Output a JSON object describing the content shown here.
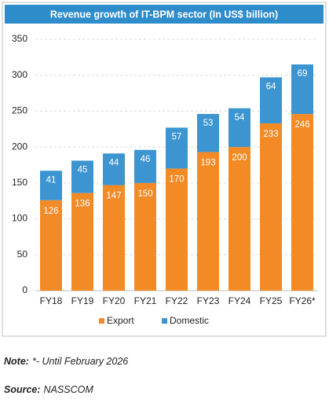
{
  "chart_data": {
    "type": "stacked_bar",
    "title": "Revenue growth of IT-BPM sector (In US$ billion)",
    "categories": [
      "FY18",
      "FY19",
      "FY20",
      "FY21",
      "FY22",
      "FY23",
      "FY24",
      "FY25",
      "FY26*"
    ],
    "series": [
      {
        "name": "Export",
        "color": "#f28a26",
        "values": [
          126,
          136,
          147,
          150,
          170,
          193,
          200,
          233,
          246
        ]
      },
      {
        "name": "Domestic",
        "color": "#3c94d0",
        "values": [
          41,
          45,
          44,
          46,
          57,
          53,
          54,
          64,
          69
        ]
      }
    ],
    "ylim": [
      0,
      350
    ],
    "yticks": [
      0,
      50,
      100,
      150,
      200,
      250,
      300,
      350
    ],
    "grid": true,
    "legend": "bottom"
  },
  "footnotes": [
    {
      "label": "Note:",
      "text": "*- Until February 2026"
    },
    {
      "label": "Source:",
      "text": "NASSCOM"
    }
  ]
}
